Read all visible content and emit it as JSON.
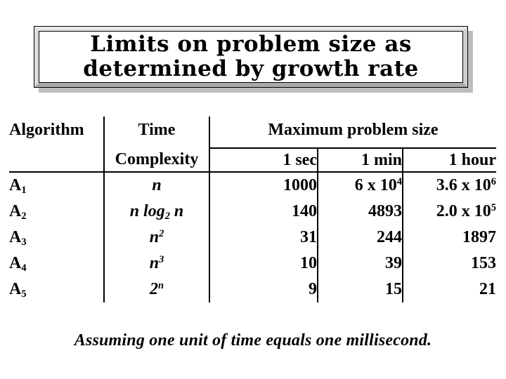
{
  "slide": {
    "title": {
      "line1": "Limits on problem size as",
      "line2": "determined by growth rate"
    },
    "table": {
      "headers": {
        "algorithm": "Algorithm",
        "time_complexity_line1": "Time",
        "time_complexity_line2": "Complexity",
        "max_problem_size": "Maximum problem size",
        "time_columns": [
          "1 sec",
          "1 min",
          "1 hour"
        ]
      },
      "rows": [
        {
          "algorithm": "A_{1}",
          "complexity": "n",
          "sec": "1000",
          "min": "6 x 10^{4}",
          "hour": "3.6 x 10^{6}"
        },
        {
          "algorithm": "A_{2}",
          "complexity": "n log_{2} n",
          "sec": "140",
          "min": "4893",
          "hour": "2.0 x 10^{5}"
        },
        {
          "algorithm": "A_{3}",
          "complexity": "n^{2}",
          "sec": "31",
          "min": "244",
          "hour": "1897"
        },
        {
          "algorithm": "A_{4}",
          "complexity": "n^{3}",
          "sec": "10",
          "min": "39",
          "hour": "153"
        },
        {
          "algorithm": "A_{5}",
          "complexity": "2^{n}",
          "sec": "9",
          "min": "15",
          "hour": "21"
        }
      ]
    },
    "footer_note": "Assuming one unit of time equals one millisecond.",
    "colors": {
      "text": "#000000",
      "table_lines": "#000000",
      "background": "#ffffff",
      "frame_light": "#e6e6e6",
      "frame_dark": "#a9a9a9",
      "shadow": "#bdbdbd"
    }
  }
}
